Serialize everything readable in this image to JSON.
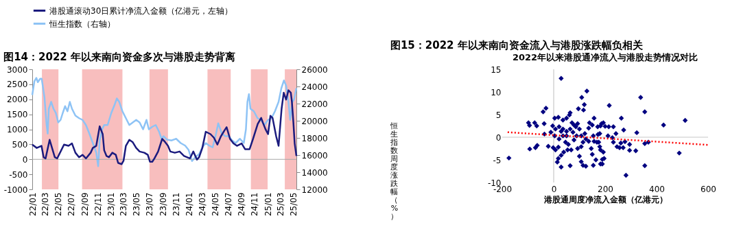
{
  "chart_data": [
    {
      "type": "line",
      "title": "图14：2022 年以来南向资金多次与港股走势背离",
      "series": [
        {
          "name": "港股通滚动30日累计净流入金额（亿港元，左轴）",
          "color": "#1b1b7e",
          "x": [
            "2022-01-01",
            "2022-01-22",
            "2022-02-13",
            "2022-02-23",
            "2022-03-04",
            "2022-03-23",
            "2022-04-16",
            "2022-04-27",
            "2022-05-13",
            "2022-05-29",
            "2022-06-19",
            "2022-07-05",
            "2022-07-21",
            "2022-08-07",
            "2022-08-23",
            "2022-09-08",
            "2022-09-30",
            "2022-10-10",
            "2022-10-26",
            "2022-11-11",
            "2022-11-25",
            "2022-12-02",
            "2022-12-13",
            "2022-12-24",
            "2023-01-09",
            "2023-01-25",
            "2023-02-05",
            "2023-02-21",
            "2023-03-02",
            "2023-03-13",
            "2023-03-29",
            "2023-04-14",
            "2023-04-30",
            "2023-05-16",
            "2023-06-07",
            "2023-06-23",
            "2023-07-03",
            "2023-07-14",
            "2023-07-24",
            "2023-08-10",
            "2023-08-29",
            "2023-09-09",
            "2023-09-25",
            "2023-10-06",
            "2023-10-27",
            "2023-11-18",
            "2023-12-09",
            "2024-01-05",
            "2024-01-21",
            "2024-02-07",
            "2024-02-17",
            "2024-03-03",
            "2024-03-19",
            "2024-04-10",
            "2024-04-26",
            "2024-05-12",
            "2024-05-28",
            "2024-06-13",
            "2024-06-24",
            "2024-07-10",
            "2024-07-26",
            "2024-08-11",
            "2024-09-02",
            "2024-09-18",
            "2024-10-09",
            "2024-10-25",
            "2024-11-16",
            "2024-12-02",
            "2024-12-10",
            "2024-12-23",
            "2025-01-03",
            "2025-01-14",
            "2025-01-24",
            "2025-02-10",
            "2025-02-21",
            "2025-03-07",
            "2025-03-17",
            "2025-03-28",
            "2025-04-08",
            "2025-04-19",
            "2025-04-24",
            "2025-05-01",
            "2025-05-07",
            "2025-05-15"
          ],
          "values": [
            490,
            380,
            450,
            70,
            30,
            650,
            70,
            30,
            260,
            490,
            450,
            530,
            220,
            70,
            150,
            30,
            220,
            380,
            450,
            1100,
            840,
            300,
            110,
            70,
            220,
            150,
            -120,
            -160,
            -50,
            450,
            650,
            570,
            380,
            260,
            220,
            150,
            -80,
            -80,
            30,
            260,
            680,
            600,
            450,
            260,
            220,
            260,
            110,
            30,
            260,
            -10,
            70,
            380,
            920,
            840,
            720,
            490,
            760,
            950,
            1070,
            680,
            530,
            450,
            530,
            340,
            340,
            680,
            1180,
            1380,
            1220,
            990,
            840,
            1450,
            1380,
            760,
            450,
            1680,
            2220,
            1990,
            2300,
            2220,
            1920,
            1220,
            530,
            110
          ]
        },
        {
          "name": "恒生指数（右轴）",
          "color": "#8ec3f5",
          "axis": "y2",
          "x": [
            "2022-01-01",
            "2022-01-11",
            "2022-01-20",
            "2022-01-27",
            "2022-02-07",
            "2022-02-14",
            "2022-02-27",
            "2022-03-09",
            "2022-03-14",
            "2022-03-19",
            "2022-03-30",
            "2022-04-10",
            "2022-04-21",
            "2022-05-02",
            "2022-05-13",
            "2022-05-23",
            "2022-06-03",
            "2022-06-14",
            "2022-06-25",
            "2022-07-05",
            "2022-07-21",
            "2022-08-07",
            "2022-08-23",
            "2022-09-08",
            "2022-09-24",
            "2022-10-10",
            "2022-10-26",
            "2022-11-04",
            "2022-11-11",
            "2022-11-22",
            "2022-12-02",
            "2022-12-18",
            "2023-01-04",
            "2023-01-20",
            "2023-01-30",
            "2023-02-10",
            "2023-02-25",
            "2023-03-13",
            "2023-03-29",
            "2023-04-14",
            "2023-04-30",
            "2023-05-16",
            "2023-06-01",
            "2023-06-17",
            "2023-06-28",
            "2023-07-14",
            "2023-07-30",
            "2023-08-15",
            "2023-08-26",
            "2023-09-04",
            "2023-09-20",
            "2023-10-11",
            "2023-11-02",
            "2023-11-23",
            "2023-12-14",
            "2023-12-30",
            "2024-01-15",
            "2024-02-01",
            "2024-02-17",
            "2024-03-03",
            "2024-03-19",
            "2024-04-04",
            "2024-04-20",
            "2024-05-06",
            "2024-05-16",
            "2024-06-02",
            "2024-06-18",
            "2024-07-04",
            "2024-07-20",
            "2024-08-05",
            "2024-08-25",
            "2024-09-12",
            "2024-09-22",
            "2024-09-29",
            "2024-10-06",
            "2024-10-13",
            "2024-10-29",
            "2024-11-15",
            "2024-12-01",
            "2024-12-17",
            "2025-01-03",
            "2025-01-19",
            "2025-02-04",
            "2025-02-21",
            "2025-03-06",
            "2025-03-18",
            "2025-03-28",
            "2025-04-08",
            "2025-04-16",
            "2025-04-26",
            "2025-05-04",
            "2025-05-15"
          ],
          "values": [
            23000,
            24600,
            25000,
            24500,
            24900,
            24900,
            22700,
            19500,
            18500,
            21400,
            22200,
            21400,
            20900,
            19800,
            20100,
            20900,
            21700,
            21100,
            22200,
            21400,
            20600,
            20300,
            20100,
            19500,
            18500,
            17400,
            16300,
            14700,
            17700,
            19000,
            19500,
            19500,
            20900,
            21900,
            22600,
            22200,
            21100,
            20300,
            19500,
            19800,
            20100,
            19800,
            19000,
            20100,
            19000,
            19300,
            19500,
            18700,
            17900,
            18200,
            17800,
            17700,
            17900,
            17400,
            17100,
            16600,
            15300,
            15800,
            16100,
            16900,
            17400,
            17100,
            16900,
            18500,
            19700,
            18500,
            18200,
            18200,
            17700,
            17400,
            17900,
            17400,
            19000,
            22200,
            23100,
            21400,
            21100,
            20300,
            20100,
            19500,
            20100,
            20300,
            21100,
            22200,
            23800,
            24700,
            24100,
            22200,
            20100,
            22200,
            22500,
            23800
          ]
        }
      ],
      "xlim": [
        "2022-01-01",
        "2025-05-15"
      ],
      "xticks": [
        {
          "value": "2022-01-01",
          "label": "22/01"
        },
        {
          "value": "2022-03-01",
          "label": "22/03"
        },
        {
          "value": "2022-05-01",
          "label": "22/05"
        },
        {
          "value": "2022-07-01",
          "label": "22/07"
        },
        {
          "value": "2022-09-01",
          "label": "22/09"
        },
        {
          "value": "2022-11-01",
          "label": "22/11"
        },
        {
          "value": "2023-01-01",
          "label": "23/01"
        },
        {
          "value": "2023-03-01",
          "label": "23/03"
        },
        {
          "value": "2023-05-01",
          "label": "23/05"
        },
        {
          "value": "2023-07-01",
          "label": "23/07"
        },
        {
          "value": "2023-09-01",
          "label": "23/09"
        },
        {
          "value": "2023-11-01",
          "label": "23/11"
        },
        {
          "value": "2024-01-01",
          "label": "24/01"
        },
        {
          "value": "2024-03-01",
          "label": "24/03"
        },
        {
          "value": "2024-05-01",
          "label": "24/05"
        },
        {
          "value": "2024-07-01",
          "label": "24/07"
        },
        {
          "value": "2024-09-01",
          "label": "24/09"
        },
        {
          "value": "2024-11-01",
          "label": "24/11"
        },
        {
          "value": "2025-01-01",
          "label": "25/01"
        },
        {
          "value": "2025-03-01",
          "label": "25/03"
        },
        {
          "value": "2025-05-01",
          "label": "25/05"
        }
      ],
      "ylim": [
        -1000,
        3000
      ],
      "yticks": [
        -1000,
        -500,
        0,
        500,
        1000,
        1500,
        2000,
        2500,
        3000
      ],
      "y2lim": [
        12000,
        26000
      ],
      "y2ticks": [
        12000,
        14000,
        16000,
        18000,
        20000,
        22000,
        24000,
        26000
      ],
      "bands": [
        {
          "axis": "x",
          "from": "2022-02-15",
          "to": "2022-05-03",
          "color": "#f7b3b3"
        },
        {
          "axis": "x",
          "from": "2022-08-21",
          "to": "2023-02-25",
          "color": "#f7b3b3"
        },
        {
          "axis": "x",
          "from": "2023-07-01",
          "to": "2023-09-25",
          "color": "#f7b3b3"
        },
        {
          "axis": "x",
          "from": "2024-03-27",
          "to": "2024-07-13",
          "color": "#f7b3b3"
        },
        {
          "axis": "x",
          "from": "2024-10-15",
          "to": "2025-01-01",
          "color": "#f7b3b3"
        },
        {
          "axis": "x",
          "from": "2025-03-22",
          "to": "2025-05-15",
          "color": "#f7b3b3"
        }
      ],
      "ref_lines": [
        {
          "axis": "y",
          "value": 0,
          "color": "#a6a6a6"
        }
      ],
      "legend": "top",
      "grid": false
    },
    {
      "type": "scatter",
      "title": "图15：2022 年以来南向资金流入与港股涨跌幅负相关",
      "subtitle": "2022年以来港股通净流入与港股走势情况对比",
      "xlabel": "港股通周度净流入金额（亿港元）",
      "ylabel": "恒生指数周度涨跌幅（%）",
      "series": [
        {
          "color": "#000080",
          "marker": "diamond",
          "x": [
            -174,
            29,
            129,
            109,
            119,
            116,
            96,
            -30,
            -41,
            -98,
            -94,
            -74,
            -66,
            -37,
            -93,
            -71,
            -64,
            -36,
            -21,
            -2,
            7,
            18,
            4,
            18,
            36,
            50,
            61,
            64,
            71,
            79,
            86,
            93,
            100,
            -4,
            7,
            21,
            36,
            50,
            64,
            75,
            89,
            107,
            -11,
            4,
            21,
            36,
            46,
            57,
            68,
            54,
            39,
            29,
            18,
            14,
            29,
            64,
            100,
            107,
            114,
            125,
            93,
            107,
            114,
            121,
            136,
            139,
            150,
            157,
            154,
            157,
            146,
            150,
            154,
            164,
            171,
            179,
            182,
            193,
            196,
            189,
            179,
            175,
            136,
            125,
            50,
            79,
            29,
            338,
            216,
            354,
            263,
            511,
            427,
            272,
            323,
            186,
            200,
            214,
            232,
            242,
            211,
            228,
            232,
            261,
            277,
            295,
            246,
            256,
            270,
            295,
            319,
            354,
            368,
            488,
            354,
            281,
            168,
            182,
            193,
            189,
            182,
            172
          ],
          "values": [
            -4.6,
            13.0,
            10.2,
            8.8,
            7.2,
            6.0,
            6.3,
            6.4,
            5.6,
            3.2,
            2.6,
            3.2,
            2.5,
            3.0,
            -2.6,
            -2.3,
            -1.8,
            0.7,
            -2.0,
            -2.3,
            -2.8,
            -2.2,
            4.2,
            4.4,
            3.8,
            4.2,
            4.9,
            5.4,
            3.2,
            2.7,
            2.3,
            3.0,
            1.8,
            2.5,
            1.8,
            2.3,
            1.8,
            1.3,
            1.8,
            1.1,
            0.3,
            0.3,
            1.1,
            0.3,
            -0.4,
            0.3,
            -1.1,
            -1.6,
            -2.8,
            -2.8,
            -3.3,
            -4.0,
            -4.7,
            -5.5,
            -6.6,
            -6.3,
            -4.2,
            -5.4,
            -6.2,
            -6.4,
            -2.5,
            -2.1,
            -1.1,
            0.8,
            2.0,
            3.2,
            2.7,
            4.2,
            0.3,
            -0.9,
            -2.5,
            -3.8,
            -6.2,
            -5.0,
            2.3,
            0.8,
            2.5,
            3.2,
            -4.7,
            -5.9,
            -2.1,
            -1.1,
            -0.9,
            -0.4,
            0.3,
            -0.6,
            1.3,
            8.8,
            7.0,
            5.6,
            4.2,
            3.7,
            2.7,
            1.6,
            1.0,
            3.0,
            2.4,
            2.3,
            2.3,
            0.8,
            0.3,
            -0.1,
            -1.1,
            -1.3,
            -1.0,
            -1.6,
            -2.1,
            -2.3,
            -2.3,
            -2.9,
            -3.0,
            -1.4,
            -1.1,
            -3.5,
            -6.3,
            -8.4,
            -1.1,
            -2.8,
            -3.3,
            -4.9,
            -5.9,
            0.6
          ]
        },
        {
          "type": "line",
          "color": "#ff0000",
          "line_style": "dotted",
          "x": [
            -179,
            600
          ],
          "values": [
            1.1,
            -1.7
          ]
        }
      ],
      "xlim": [
        -200,
        600
      ],
      "xticks": [
        -200,
        0,
        200,
        400,
        600
      ],
      "ylim": [
        -10,
        15
      ],
      "yticks": [
        -10,
        -5,
        0,
        5,
        10,
        15
      ],
      "ref_lines": [
        {
          "axis": "x",
          "value": 0,
          "color": "#c8c8c8"
        },
        {
          "axis": "y",
          "value": 0,
          "color": "#c8c8c8"
        }
      ],
      "legend": false,
      "grid": false
    }
  ]
}
